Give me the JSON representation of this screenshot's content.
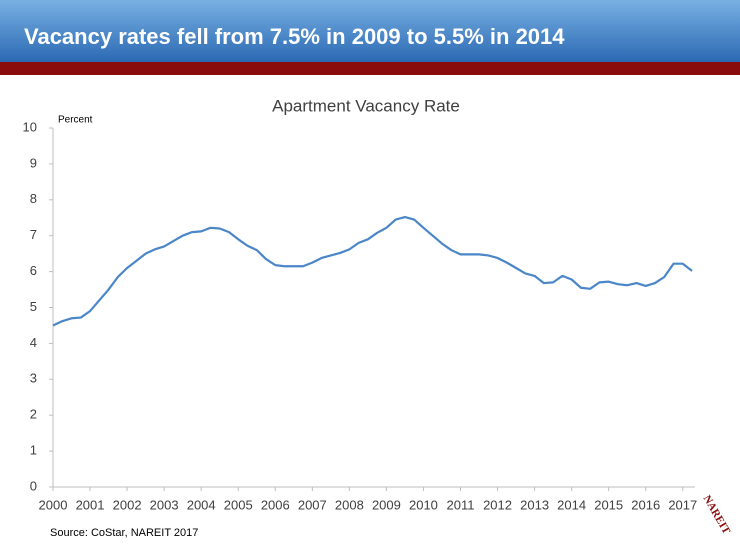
{
  "header": {
    "title": "Vacancy rates fell from 7.5% in 2009 to 5.5% in 2014"
  },
  "chart_data": {
    "type": "line",
    "title": "Apartment Vacancy Rate",
    "y_label": "Percent",
    "x": [
      2000,
      2000.25,
      2000.5,
      2000.75,
      2001,
      2001.25,
      2001.5,
      2001.75,
      2002,
      2002.25,
      2002.5,
      2002.75,
      2003,
      2003.25,
      2003.5,
      2003.75,
      2004,
      2004.25,
      2004.5,
      2004.75,
      2005,
      2005.25,
      2005.5,
      2005.75,
      2006,
      2006.25,
      2006.5,
      2006.75,
      2007,
      2007.25,
      2007.5,
      2007.75,
      2008,
      2008.25,
      2008.5,
      2008.75,
      2009,
      2009.25,
      2009.5,
      2009.75,
      2010,
      2010.25,
      2010.5,
      2010.75,
      2011,
      2011.25,
      2011.5,
      2011.75,
      2012,
      2012.25,
      2012.5,
      2012.75,
      2013,
      2013.25,
      2013.5,
      2013.75,
      2014,
      2014.25,
      2014.5,
      2014.75,
      2015,
      2015.25,
      2015.5,
      2015.75,
      2016,
      2016.25,
      2016.5,
      2016.75,
      2017,
      2017.25
    ],
    "series": [
      {
        "name": "Apartment vacancy rate",
        "color": "#4a86c8",
        "values": [
          4.5,
          4.62,
          4.7,
          4.72,
          4.9,
          5.2,
          5.5,
          5.85,
          6.1,
          6.3,
          6.5,
          6.62,
          6.7,
          6.85,
          7.0,
          7.1,
          7.12,
          7.22,
          7.2,
          7.1,
          6.9,
          6.72,
          6.6,
          6.35,
          6.18,
          6.15,
          6.15,
          6.15,
          6.25,
          6.38,
          6.45,
          6.52,
          6.62,
          6.8,
          6.9,
          7.08,
          7.22,
          7.45,
          7.52,
          7.45,
          7.22,
          7.0,
          6.78,
          6.6,
          6.48,
          6.48,
          6.48,
          6.45,
          6.38,
          6.25,
          6.1,
          5.95,
          5.88,
          5.68,
          5.7,
          5.88,
          5.78,
          5.55,
          5.52,
          5.7,
          5.72,
          5.65,
          5.62,
          5.68,
          5.6,
          5.68,
          5.85,
          6.22,
          6.22,
          6.02
        ]
      }
    ],
    "xlim": [
      2000,
      2017.33
    ],
    "xticks": [
      2000,
      2001,
      2002,
      2003,
      2004,
      2005,
      2006,
      2007,
      2008,
      2009,
      2010,
      2011,
      2012,
      2013,
      2014,
      2015,
      2016,
      2017
    ],
    "ylim": [
      0,
      10
    ],
    "yticks": [
      0,
      1,
      2,
      3,
      4,
      5,
      6,
      7,
      8,
      9,
      10
    ],
    "grid": false
  },
  "footer": {
    "source": "Source: CoStar, NAREIT 2017",
    "logo": "NAREIT"
  }
}
